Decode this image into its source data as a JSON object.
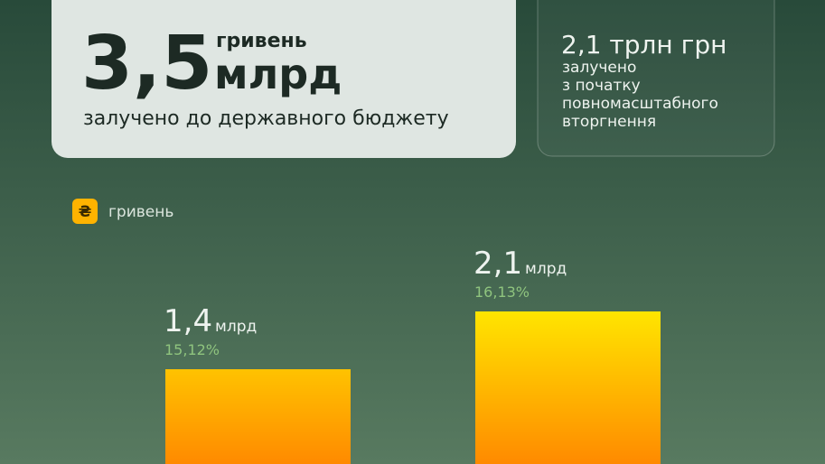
{
  "cards": [
    {
      "number": "3,5",
      "unit_top": "гривень",
      "unit_bottom": "млрд",
      "caption": "залучено до державного бюджету"
    },
    {
      "headline": "2,1 трлн грн",
      "caption_lines": [
        "залучено",
        "з початку",
        "повномасштабного",
        "вторгнення"
      ]
    }
  ],
  "chart_data": {
    "type": "bar",
    "legend_icon": "₴",
    "series": [
      {
        "name": "гривень",
        "color": "#ffb300",
        "gradient": [
          "#ffe500",
          "#ff8a00"
        ],
        "values": [
          1.4,
          2.1
        ],
        "value_labels": [
          "1,4",
          "2,1"
        ],
        "value_unit": "млрд",
        "shares": [
          15.12,
          16.13
        ],
        "share_labels": [
          "15,12%",
          "16,13%"
        ]
      }
    ]
  }
}
